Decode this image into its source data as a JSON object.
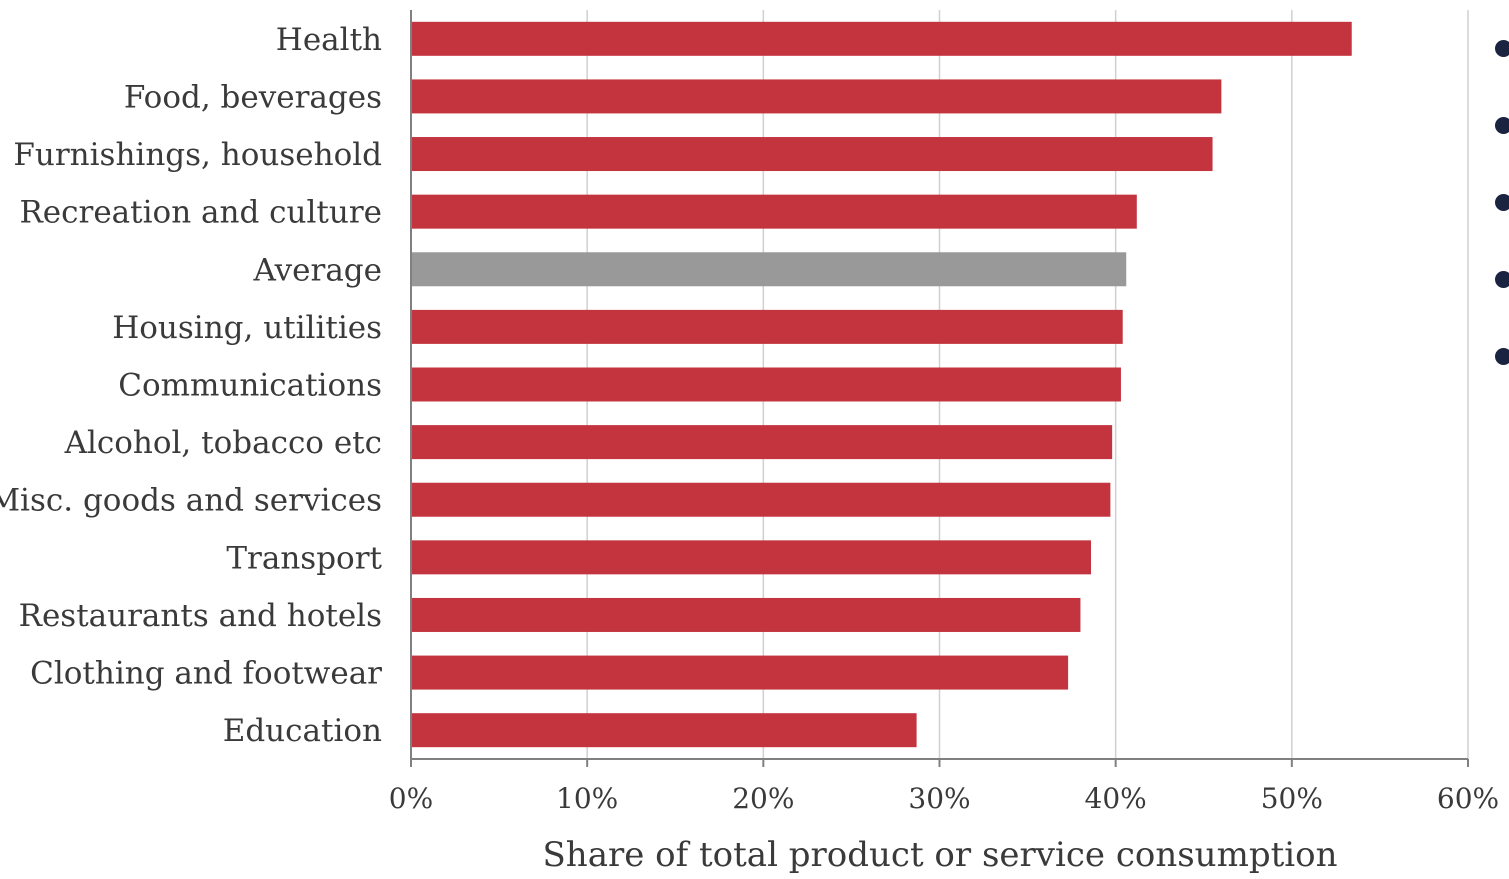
{
  "chart_data": {
    "type": "bar",
    "orientation": "horizontal",
    "categories": [
      "Health",
      "Food, beverages",
      "Furnishings, household",
      "Recreation and culture",
      "Average",
      "Housing, utilities",
      "Communications",
      "Alcohol, tobacco etc",
      "Misc. goods and services",
      "Transport",
      "Restaurants and hotels",
      "Clothing and footwear",
      "Education"
    ],
    "values": [
      53.4,
      46.0,
      45.5,
      41.2,
      40.6,
      40.4,
      40.3,
      39.8,
      39.7,
      38.6,
      38.0,
      37.3,
      28.7
    ],
    "highlight": "Average",
    "colors": {
      "bar": "#c4343f",
      "highlight": "#999999",
      "grid": "#d0d0d0",
      "axis": "#808080"
    },
    "xlabel": "Share of total product or service consumption",
    "ylabel": "",
    "xlim": [
      0,
      60
    ],
    "xticks": [
      "0%",
      "10%",
      "20%",
      "30%",
      "40%",
      "50%",
      "60%"
    ],
    "grid": true,
    "legend": "none"
  },
  "side_bullets": {
    "count": 5,
    "color": "#1a2340"
  }
}
